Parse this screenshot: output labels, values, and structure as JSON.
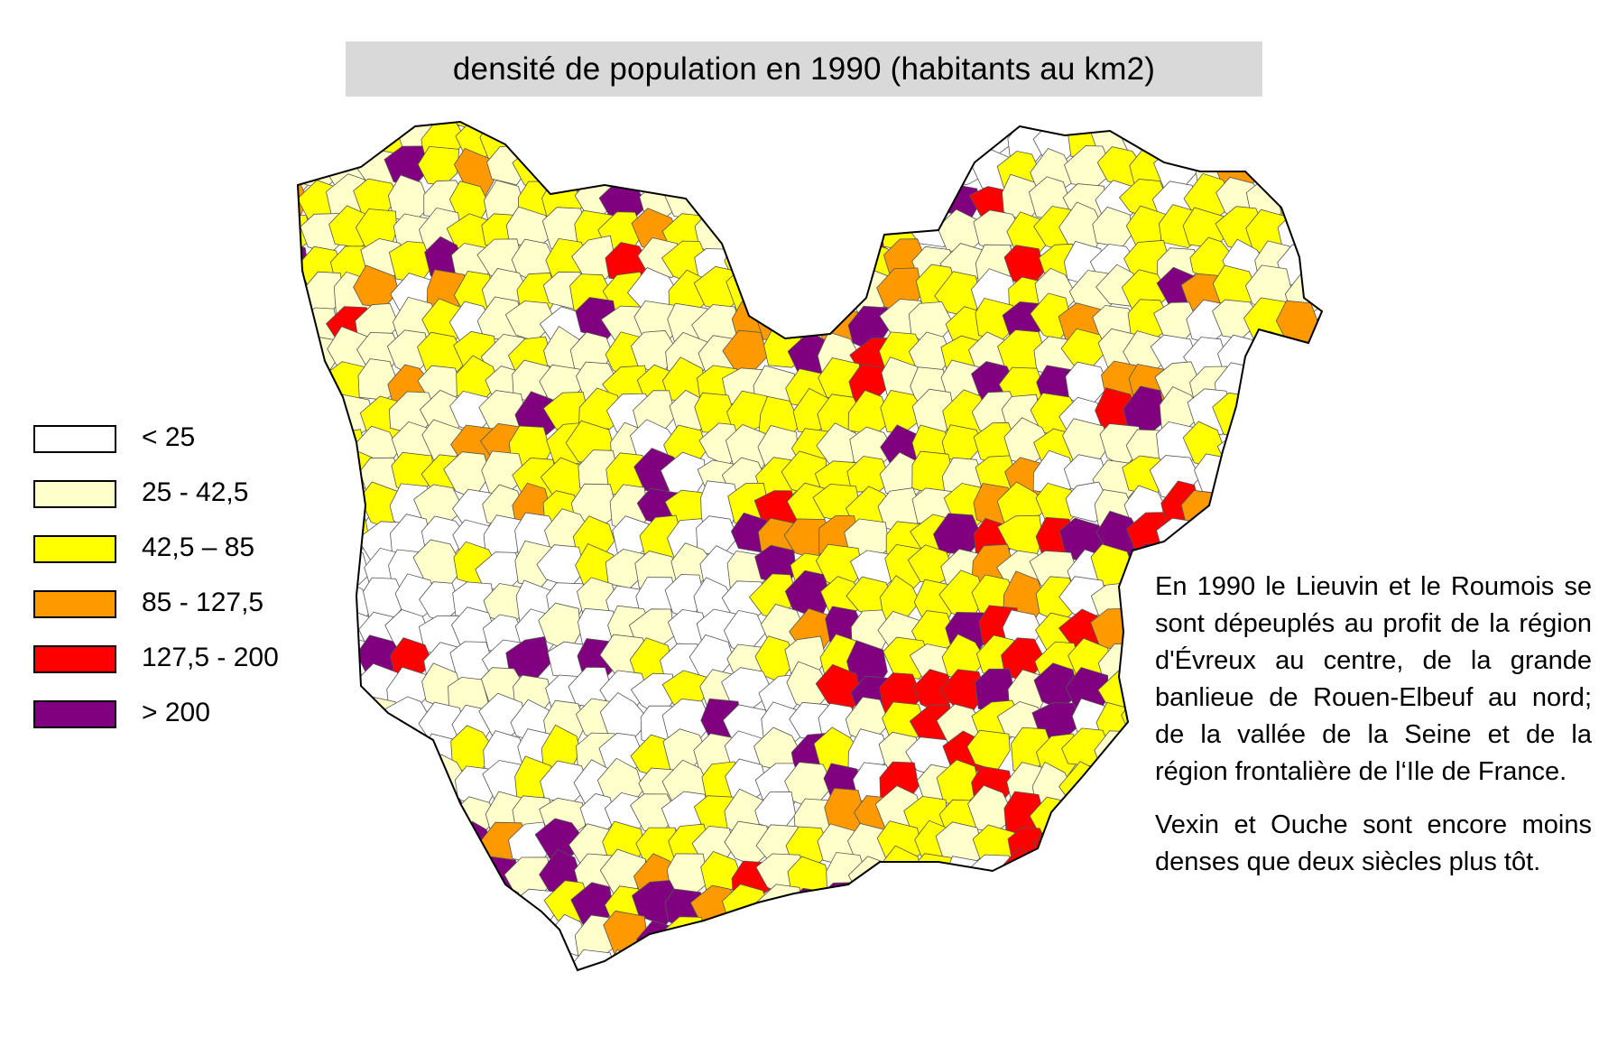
{
  "title": "densité de population en 1990 (habitants au km2)",
  "legend": [
    {
      "label": "< 25",
      "color": "#ffffff"
    },
    {
      "label": "25 - 42,5",
      "color": "#ffffcc"
    },
    {
      "label": "42,5 – 85",
      "color": "#ffff00"
    },
    {
      "label": "85 - 127,5",
      "color": "#ff9900"
    },
    {
      "label": "127,5 - 200",
      "color": "#ff0000"
    },
    {
      "label": "> 200",
      "color": "#800080"
    }
  ],
  "description": {
    "paragraph1": "En 1990 le Lieuvin et le Roumois se sont dépeuplés au profit de la région d'Évreux au centre, de la grande banlieue de Rouen-Elbeuf au nord; de la vallée de la Seine et de la région frontalière de l‘Ile de France.",
    "paragraph2": "Vexin et Ouche sont encore moins denses que deux siècles plus tôt."
  }
}
